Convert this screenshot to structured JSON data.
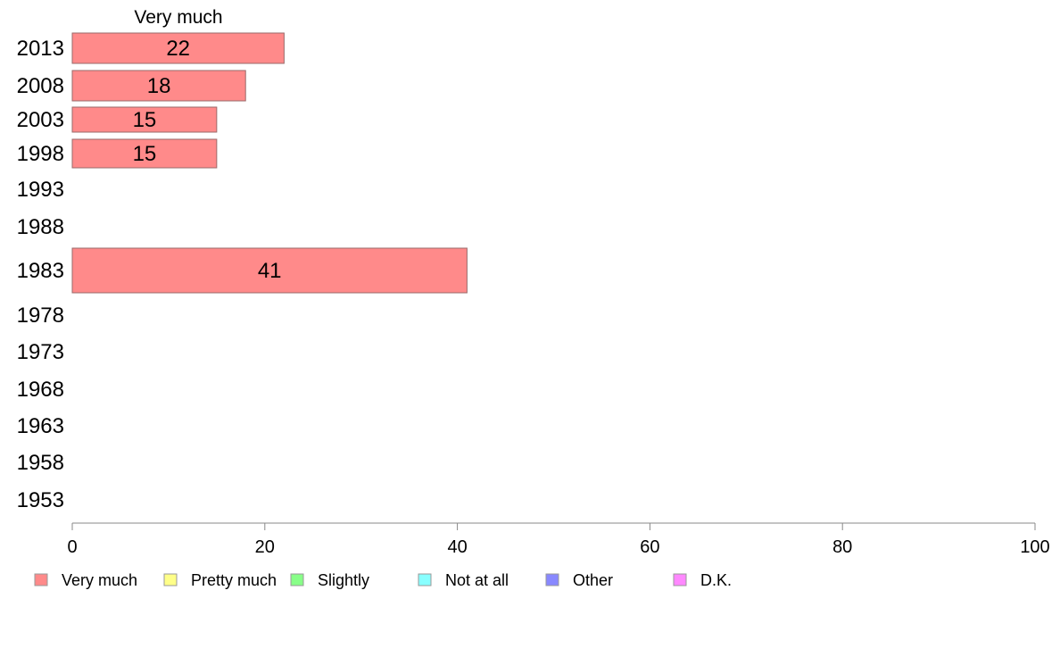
{
  "chart_data": {
    "type": "bar",
    "orientation": "horizontal",
    "title": "",
    "column_header": "Very much",
    "xlim": [
      0,
      100
    ],
    "x_ticks": [
      0,
      20,
      40,
      60,
      80,
      100
    ],
    "grid": false,
    "legend_position": "bottom",
    "categories": [
      "2013",
      "2008",
      "2003",
      "1998",
      "1993",
      "1988",
      "1983",
      "1978",
      "1973",
      "1968",
      "1963",
      "1958",
      "1953"
    ],
    "series": [
      {
        "name": "Very much",
        "color": "#ff8a8a",
        "values": [
          22,
          18,
          15,
          15,
          null,
          null,
          41,
          null,
          null,
          null,
          null,
          null,
          null
        ],
        "data_labels": [
          "22",
          "18",
          "15",
          "15",
          "",
          "",
          "41",
          "",
          "",
          "",
          "",
          "",
          ""
        ]
      }
    ],
    "legend": [
      {
        "label": "Very much",
        "color": "#ff8a8a"
      },
      {
        "label": "Pretty much",
        "color": "#ffff88"
      },
      {
        "label": "Slightly",
        "color": "#88ff88"
      },
      {
        "label": "Not at all",
        "color": "#88ffff"
      },
      {
        "label": "Other",
        "color": "#8888ff"
      },
      {
        "label": "D.K.",
        "color": "#ff88ff"
      }
    ]
  }
}
